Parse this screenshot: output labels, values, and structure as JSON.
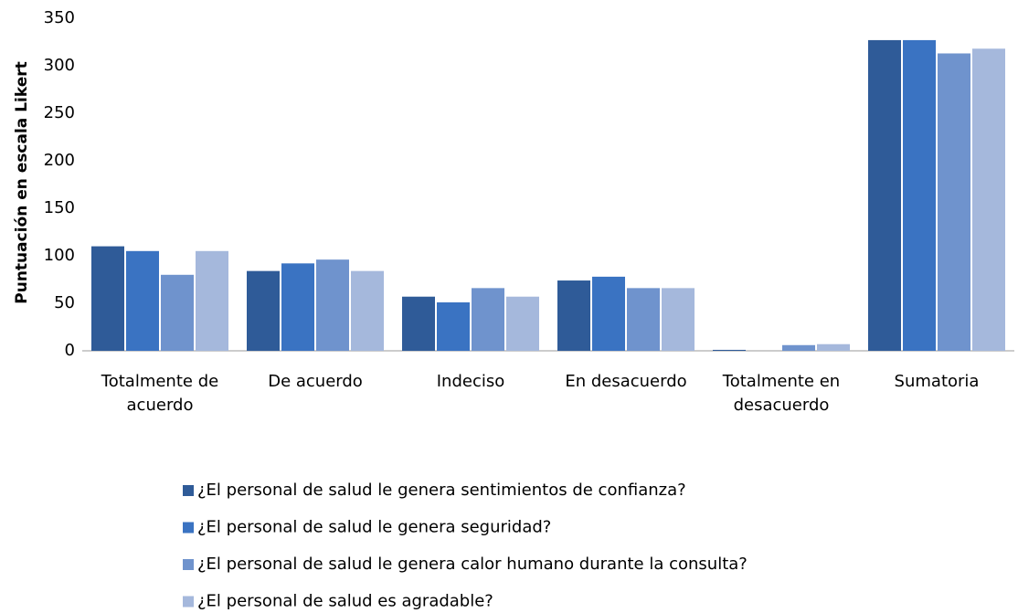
{
  "chart_data": {
    "type": "bar",
    "y_label": "Puntuación en escala Likert",
    "categories": [
      "Totalmente de acuerdo",
      "De acuerdo",
      "Indeciso",
      "En desacuerdo",
      "Totalmente en desacuerdo",
      "Sumatoria"
    ],
    "series": [
      {
        "name": "¿El personal de salud le genera sentimientos de confianza?",
        "color": "#2f5b98",
        "values": [
          110,
          84,
          57,
          74,
          1,
          327
        ]
      },
      {
        "name": "¿El personal de salud le genera seguridad?",
        "color": "#3a73c2",
        "values": [
          105,
          92,
          51,
          78,
          0,
          327
        ]
      },
      {
        "name": "¿El personal de salud le genera calor humano durante la consulta?",
        "color": "#6f93cd",
        "values": [
          80,
          96,
          66,
          66,
          6,
          313
        ]
      },
      {
        "name": "¿El personal de salud es agradable?",
        "color": "#a5b8dc",
        "values": [
          105,
          84,
          57,
          66,
          7,
          318
        ]
      }
    ],
    "ylim": [
      0,
      350
    ],
    "yticks": [
      0,
      50,
      100,
      150,
      200,
      250,
      300,
      350
    ],
    "grid": false,
    "legend": "bottom"
  }
}
